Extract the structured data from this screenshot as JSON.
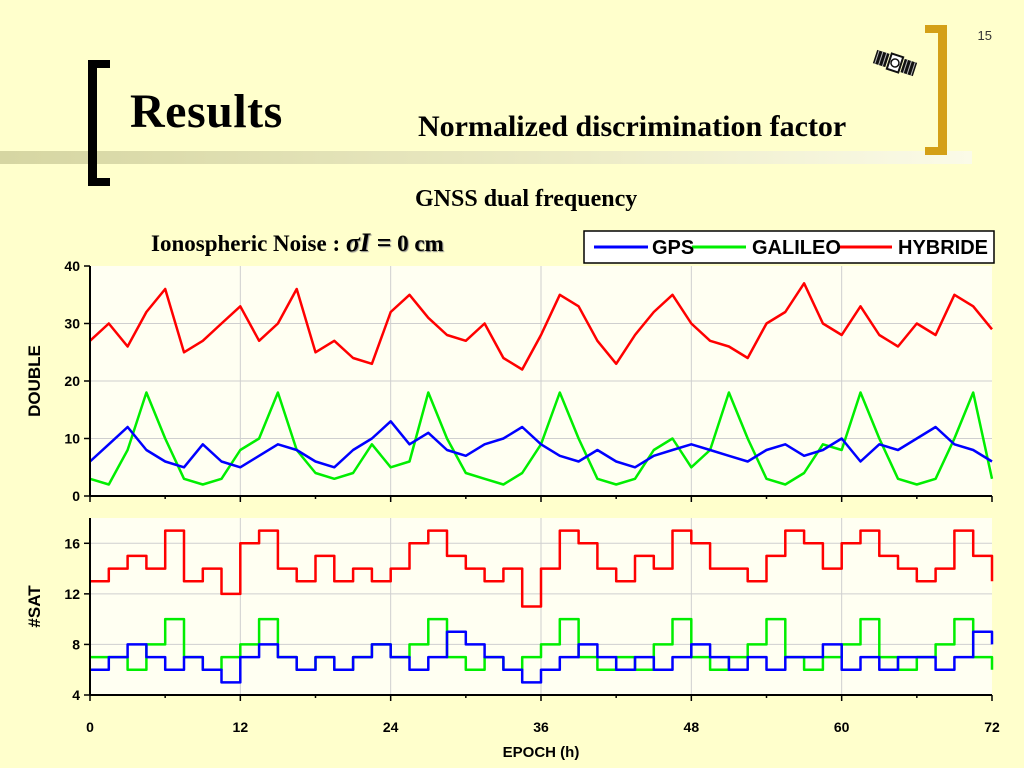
{
  "slide": {
    "page_number": "15",
    "title": "Results",
    "subtitle": "Normalized discrimination factor",
    "chart_heading": "GNSS dual frequency",
    "noise": {
      "label": "Ionospheric Noise :",
      "symbol": "σI =",
      "value": "0 cm"
    }
  },
  "colors": {
    "background": "#ffffcc",
    "gps": "#0000ff",
    "galileo": "#00ee00",
    "hybride": "#ff0000",
    "bracket_right": "#d4a017"
  },
  "chart_data": [
    {
      "type": "line",
      "ylabel": "DOUBLE",
      "xlim": [
        0,
        72
      ],
      "ylim": [
        0,
        40
      ],
      "yticks": [
        "0",
        "10",
        "20",
        "30",
        "40"
      ],
      "legend": {
        "placement": "top-right",
        "entries": [
          "GPS",
          "GALILEO",
          "HYBRIDE"
        ]
      },
      "x": [
        0,
        1.5,
        3,
        4.5,
        6,
        7.5,
        9,
        10.5,
        12,
        13.5,
        15,
        16.5,
        18,
        19.5,
        21,
        22.5,
        24,
        25.5,
        27,
        28.5,
        30,
        31.5,
        33,
        34.5,
        36,
        37.5,
        39,
        40.5,
        42,
        43.5,
        45,
        46.5,
        48,
        49.5,
        51,
        52.5,
        54,
        55.5,
        57,
        58.5,
        60,
        61.5,
        63,
        64.5,
        66,
        67.5,
        69,
        70.5,
        72
      ],
      "series": [
        {
          "name": "GPS",
          "values": [
            6,
            9,
            12,
            8,
            6,
            5,
            9,
            6,
            5,
            7,
            9,
            8,
            6,
            5,
            8,
            10,
            13,
            9,
            11,
            8,
            7,
            9,
            10,
            12,
            9,
            7,
            6,
            8,
            6,
            5,
            7,
            8,
            9,
            8,
            7,
            6,
            8,
            9,
            7,
            8,
            10,
            6,
            9,
            8,
            10,
            12,
            9,
            8,
            6
          ]
        },
        {
          "name": "GALILEO",
          "values": [
            3,
            2,
            8,
            18,
            10,
            3,
            2,
            3,
            8,
            10,
            18,
            8,
            4,
            3,
            4,
            9,
            5,
            6,
            18,
            10,
            4,
            3,
            2,
            4,
            9,
            18,
            10,
            3,
            2,
            3,
            8,
            10,
            5,
            8,
            18,
            10,
            3,
            2,
            4,
            9,
            8,
            18,
            10,
            3,
            2,
            3,
            10,
            18,
            3
          ]
        },
        {
          "name": "HYBRIDE",
          "values": [
            27,
            30,
            26,
            32,
            36,
            25,
            27,
            30,
            33,
            27,
            30,
            36,
            25,
            27,
            24,
            23,
            32,
            35,
            31,
            28,
            27,
            30,
            24,
            22,
            28,
            35,
            33,
            27,
            23,
            28,
            32,
            35,
            30,
            27,
            26,
            24,
            30,
            32,
            37,
            30,
            28,
            33,
            28,
            26,
            30,
            28,
            35,
            33,
            29
          ]
        }
      ]
    },
    {
      "type": "line",
      "ylabel": "#SAT",
      "xlabel": "EPOCH (h)",
      "xlim": [
        0,
        72
      ],
      "ylim": [
        4,
        18
      ],
      "xticks": [
        "0",
        "12",
        "24",
        "36",
        "48",
        "60",
        "72"
      ],
      "yticks": [
        "4",
        "8",
        "12",
        "16"
      ],
      "x": [
        0,
        1.5,
        3,
        4.5,
        6,
        7.5,
        9,
        10.5,
        12,
        13.5,
        15,
        16.5,
        18,
        19.5,
        21,
        22.5,
        24,
        25.5,
        27,
        28.5,
        30,
        31.5,
        33,
        34.5,
        36,
        37.5,
        39,
        40.5,
        42,
        43.5,
        45,
        46.5,
        48,
        49.5,
        51,
        52.5,
        54,
        55.5,
        57,
        58.5,
        60,
        61.5,
        63,
        64.5,
        66,
        67.5,
        69,
        70.5,
        72
      ],
      "series": [
        {
          "name": "GPS",
          "values": [
            6,
            7,
            8,
            7,
            6,
            7,
            6,
            5,
            7,
            8,
            7,
            6,
            7,
            6,
            7,
            8,
            7,
            6,
            7,
            9,
            8,
            7,
            6,
            5,
            6,
            7,
            8,
            7,
            6,
            7,
            6,
            7,
            8,
            7,
            6,
            7,
            6,
            7,
            7,
            8,
            6,
            7,
            6,
            7,
            7,
            6,
            7,
            9,
            8
          ]
        },
        {
          "name": "GALILEO",
          "values": [
            7,
            7,
            6,
            8,
            10,
            7,
            6,
            7,
            8,
            10,
            7,
            6,
            7,
            6,
            7,
            8,
            7,
            8,
            10,
            7,
            6,
            7,
            6,
            7,
            8,
            10,
            7,
            6,
            7,
            6,
            8,
            10,
            7,
            6,
            7,
            8,
            10,
            7,
            6,
            7,
            8,
            10,
            7,
            6,
            7,
            8,
            10,
            7,
            6
          ]
        },
        {
          "name": "HYBRIDE",
          "values": [
            13,
            14,
            15,
            14,
            17,
            13,
            14,
            12,
            16,
            17,
            14,
            13,
            15,
            13,
            14,
            13,
            14,
            16,
            17,
            15,
            14,
            13,
            14,
            11,
            14,
            17,
            16,
            14,
            13,
            15,
            14,
            17,
            16,
            14,
            14,
            13,
            15,
            17,
            16,
            14,
            16,
            17,
            15,
            14,
            13,
            14,
            17,
            15,
            13
          ]
        }
      ]
    }
  ]
}
